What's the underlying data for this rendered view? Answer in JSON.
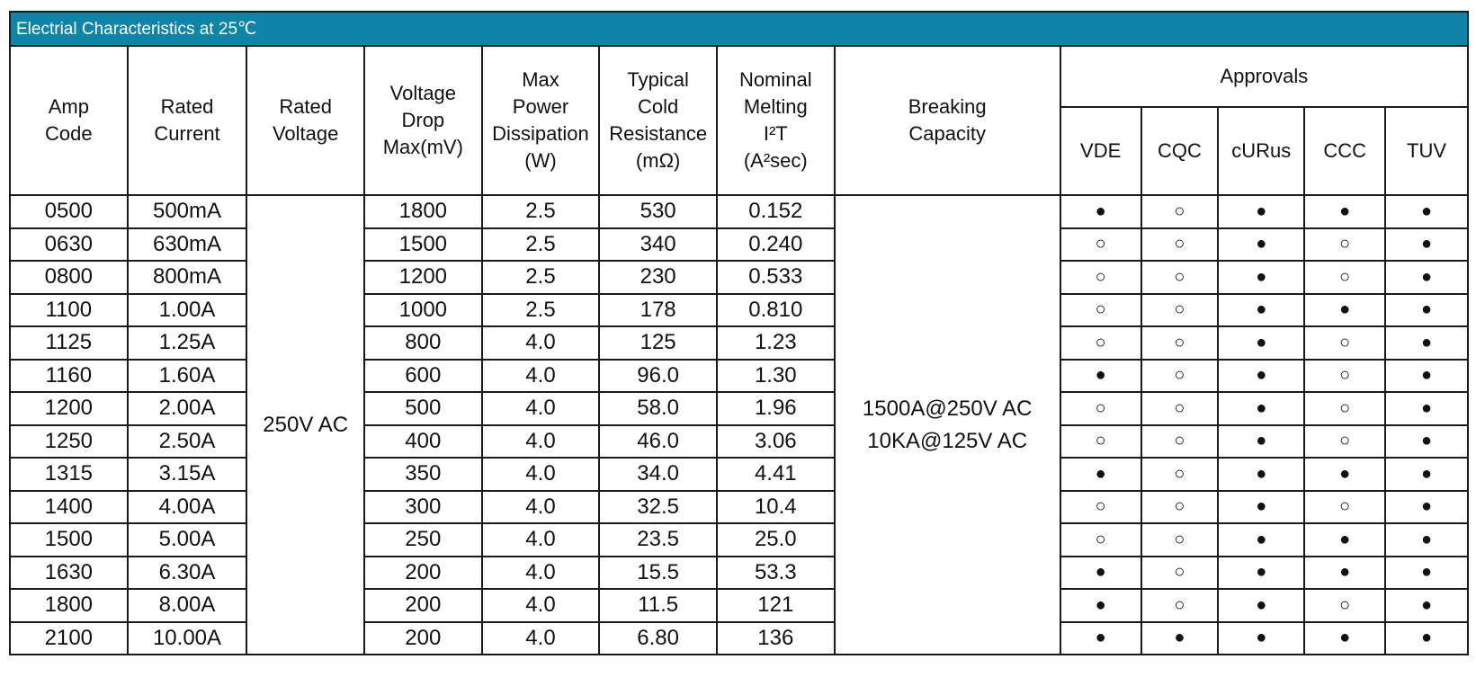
{
  "title": "Electrial Characteristics at 25℃",
  "headers": {
    "amp_code": [
      "Amp",
      "Code"
    ],
    "rated_current": [
      "Rated",
      "Current"
    ],
    "rated_voltage": [
      "Rated",
      "Voltage"
    ],
    "voltage_drop": [
      "Voltage",
      "Drop",
      "Max(mV)"
    ],
    "max_power": [
      "Max",
      "Power",
      "Dissipation",
      "(W)"
    ],
    "cold_resistance": [
      "Typical",
      "Cold",
      "Resistance",
      "(mΩ)"
    ],
    "melting": [
      "Nominal",
      "Melting",
      "I²T",
      "(A²sec)"
    ],
    "breaking": [
      "Breaking",
      "Capacity"
    ],
    "approvals": "Approvals",
    "approval_cols": [
      "VDE",
      "CQC",
      "cURus",
      "CCC",
      "TUV"
    ]
  },
  "rated_voltage": "250V AC",
  "breaking_capacity": [
    "1500A@250V AC",
    "10KA@125V AC"
  ],
  "rows": [
    {
      "code": "0500",
      "current": "500mA",
      "drop": "1800",
      "power": "2.5",
      "resistance": "530",
      "melting": "0.152",
      "approvals": [
        "●",
        "○",
        "●",
        "●",
        "●"
      ]
    },
    {
      "code": "0630",
      "current": "630mA",
      "drop": "1500",
      "power": "2.5",
      "resistance": "340",
      "melting": "0.240",
      "approvals": [
        "○",
        "○",
        "●",
        "○",
        "●"
      ]
    },
    {
      "code": "0800",
      "current": "800mA",
      "drop": "1200",
      "power": "2.5",
      "resistance": "230",
      "melting": "0.533",
      "approvals": [
        "○",
        "○",
        "●",
        "○",
        "●"
      ]
    },
    {
      "code": "1100",
      "current": "1.00A",
      "drop": "1000",
      "power": "2.5",
      "resistance": "178",
      "melting": "0.810",
      "approvals": [
        "○",
        "○",
        "●",
        "●",
        "●"
      ]
    },
    {
      "code": "1125",
      "current": "1.25A",
      "drop": "800",
      "power": "4.0",
      "resistance": "125",
      "melting": "1.23",
      "approvals": [
        "○",
        "○",
        "●",
        "○",
        "●"
      ]
    },
    {
      "code": "1160",
      "current": "1.60A",
      "drop": "600",
      "power": "4.0",
      "resistance": "96.0",
      "melting": "1.30",
      "approvals": [
        "●",
        "○",
        "●",
        "○",
        "●"
      ]
    },
    {
      "code": "1200",
      "current": "2.00A",
      "drop": "500",
      "power": "4.0",
      "resistance": "58.0",
      "melting": "1.96",
      "approvals": [
        "○",
        "○",
        "●",
        "○",
        "●"
      ]
    },
    {
      "code": "1250",
      "current": "2.50A",
      "drop": "400",
      "power": "4.0",
      "resistance": "46.0",
      "melting": "3.06",
      "approvals": [
        "○",
        "○",
        "●",
        "○",
        "●"
      ]
    },
    {
      "code": "1315",
      "current": "3.15A",
      "drop": "350",
      "power": "4.0",
      "resistance": "34.0",
      "melting": "4.41",
      "approvals": [
        "●",
        "○",
        "●",
        "●",
        "●"
      ]
    },
    {
      "code": "1400",
      "current": "4.00A",
      "drop": "300",
      "power": "4.0",
      "resistance": "32.5",
      "melting": "10.4",
      "approvals": [
        "○",
        "○",
        "●",
        "○",
        "●"
      ]
    },
    {
      "code": "1500",
      "current": "5.00A",
      "drop": "250",
      "power": "4.0",
      "resistance": "23.5",
      "melting": "25.0",
      "approvals": [
        "○",
        "○",
        "●",
        "●",
        "●"
      ]
    },
    {
      "code": "1630",
      "current": "6.30A",
      "drop": "200",
      "power": "4.0",
      "resistance": "15.5",
      "melting": "53.3",
      "approvals": [
        "●",
        "○",
        "●",
        "●",
        "●"
      ]
    },
    {
      "code": "1800",
      "current": "8.00A",
      "drop": "200",
      "power": "4.0",
      "resistance": "11.5",
      "melting": "121",
      "approvals": [
        "●",
        "○",
        "●",
        "○",
        "●"
      ]
    },
    {
      "code": "2100",
      "current": "10.00A",
      "drop": "200",
      "power": "4.0",
      "resistance": "6.80",
      "melting": "136",
      "approvals": [
        "●",
        "●",
        "●",
        "●",
        "●"
      ]
    }
  ]
}
